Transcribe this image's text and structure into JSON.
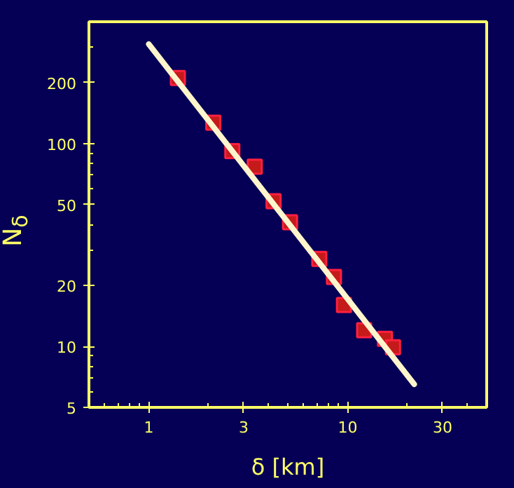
{
  "chart_data": {
    "type": "scatter",
    "xlabel": "δ [km]",
    "ylabel": "N$_{δ}$",
    "log": "xy",
    "grid": false,
    "xlim": [
      0.5,
      50
    ],
    "ylim": [
      5,
      400
    ],
    "xticks": [
      {
        "value": 0.6,
        "label": null
      },
      {
        "value": 0.7,
        "label": null
      },
      {
        "value": 0.8,
        "label": null
      },
      {
        "value": 0.9,
        "label": null
      },
      1,
      {
        "value": 2,
        "label": null
      },
      3,
      {
        "value": 4,
        "label": null
      },
      {
        "value": 5,
        "label": null
      },
      {
        "value": 6,
        "label": null
      },
      {
        "value": 7,
        "label": null
      },
      {
        "value": 8,
        "label": null
      },
      {
        "value": 9,
        "label": null
      },
      10,
      {
        "value": 20,
        "label": null
      },
      30,
      {
        "value": 40,
        "label": null
      }
    ],
    "yticks": [
      5,
      {
        "value": 6,
        "label": null
      },
      {
        "value": 7,
        "label": null
      },
      {
        "value": 8,
        "label": null
      },
      {
        "value": 9,
        "label": null
      },
      10,
      20,
      {
        "value": 30,
        "label": null
      },
      {
        "value": 40,
        "label": null
      },
      50,
      {
        "value": 60,
        "label": null
      },
      {
        "value": 70,
        "label": null
      },
      {
        "value": 80,
        "label": null
      },
      {
        "value": 90,
        "label": null
      },
      100,
      200,
      {
        "value": 300,
        "label": null
      }
    ],
    "series": [
      {
        "type": "scatter",
        "marker": "square",
        "color": "#c41a1a",
        "x": [
          1.4,
          2.11,
          2.63,
          3.41,
          4.24,
          5.13,
          7.2,
          8.53,
          9.58,
          12.1,
          15.4,
          16.9
        ],
        "values": [
          211,
          127,
          92,
          77,
          52,
          41,
          27,
          22,
          16,
          12,
          10.9,
          9.9
        ]
      },
      {
        "type": "line",
        "marker": "none",
        "color": "#fff5cc",
        "x": [
          1.0,
          21.6
        ],
        "values": [
          310,
          6.5
        ]
      }
    ]
  }
}
